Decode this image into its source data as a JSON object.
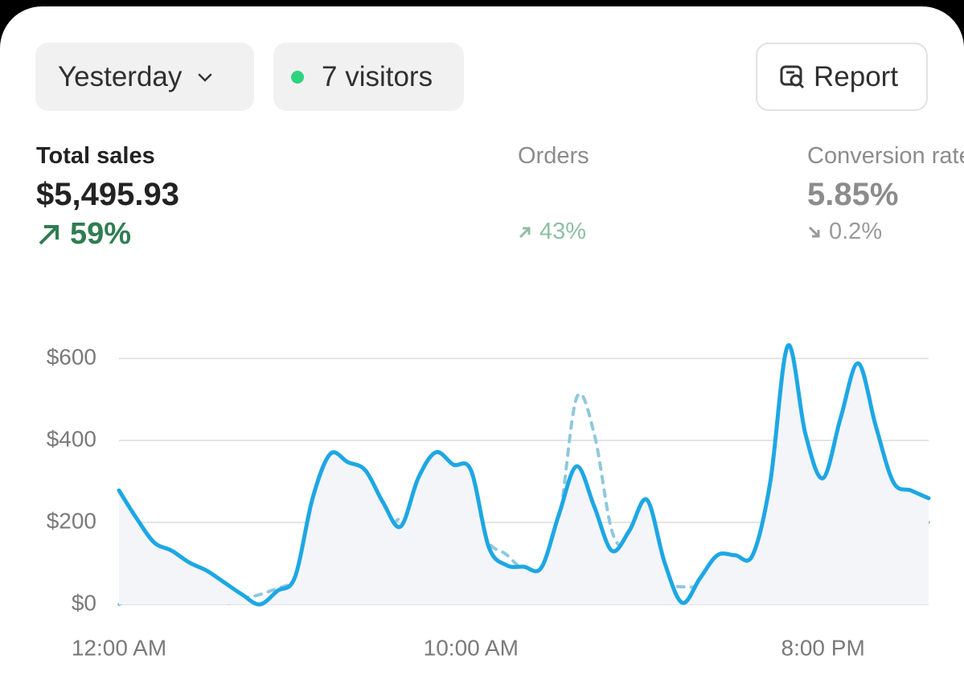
{
  "controls": {
    "period": "Yesterday",
    "visitors": "7 visitors",
    "report": "Report"
  },
  "metrics": [
    {
      "label": "Total sales",
      "value": "$5,495.93",
      "change": "59%"
    },
    {
      "label": "Orders",
      "change": "43%"
    },
    {
      "label": "Conversion rate",
      "value": "5.85%",
      "change": "0.2%"
    }
  ],
  "chart_data": {
    "type": "line",
    "x": [
      0,
      0.5,
      1,
      1.5,
      2,
      2.5,
      3,
      3.5,
      4,
      4.5,
      5,
      5.5,
      6,
      6.5,
      7,
      7.5,
      8,
      8.5,
      9,
      9.5,
      10,
      10.5,
      11,
      11.5,
      12,
      12.5,
      13,
      13.5,
      14,
      14.5,
      15,
      15.5,
      16,
      16.5,
      17,
      17.5,
      18,
      18.5,
      19,
      19.5,
      20,
      20.5,
      21,
      21.5,
      22,
      22.5,
      23
    ],
    "series": [
      {
        "color": "#1ea7e4",
        "style": "solid",
        "fill": "#f3f5f8",
        "values": [
          278,
          210,
          151,
          131,
          102,
          82,
          53,
          24,
          0,
          33,
          67,
          259,
          367,
          347,
          327,
          249,
          190,
          308,
          371,
          341,
          327,
          141,
          96,
          92,
          90,
          220,
          337,
          239,
          131,
          180,
          255,
          102,
          4,
          63,
          120,
          120,
          120,
          298,
          631,
          416,
          308,
          455,
          588,
          435,
          298,
          278,
          259
        ]
      },
      {
        "color": "#8ec8df",
        "style": "dashed",
        "values": [
          0,
          20,
          43,
          53,
          61,
          43,
          4,
          14,
          24,
          39,
          53,
          73,
          86,
          92,
          102,
          161,
          210,
          180,
          165,
          220,
          249,
          151,
          122,
          82,
          63,
          200,
          504,
          416,
          180,
          122,
          53,
          47,
          43,
          43,
          51,
          67,
          122,
          259,
          367,
          278,
          131,
          249,
          386,
          308,
          249,
          220,
          200
        ]
      }
    ],
    "xlim": [
      0,
      23
    ],
    "xticks": [
      {
        "value": 0,
        "label": "12:00 AM"
      },
      {
        "value": 10,
        "label": "10:00 AM"
      },
      {
        "value": 20,
        "label": "8:00 PM"
      }
    ],
    "ylim": [
      0,
      600
    ],
    "yticks": [
      {
        "value": 0,
        "label": "$0"
      },
      {
        "value": 200,
        "label": "$200"
      },
      {
        "value": 400,
        "label": "$400"
      },
      {
        "value": 600,
        "label": "$600"
      }
    ],
    "grid": true
  }
}
